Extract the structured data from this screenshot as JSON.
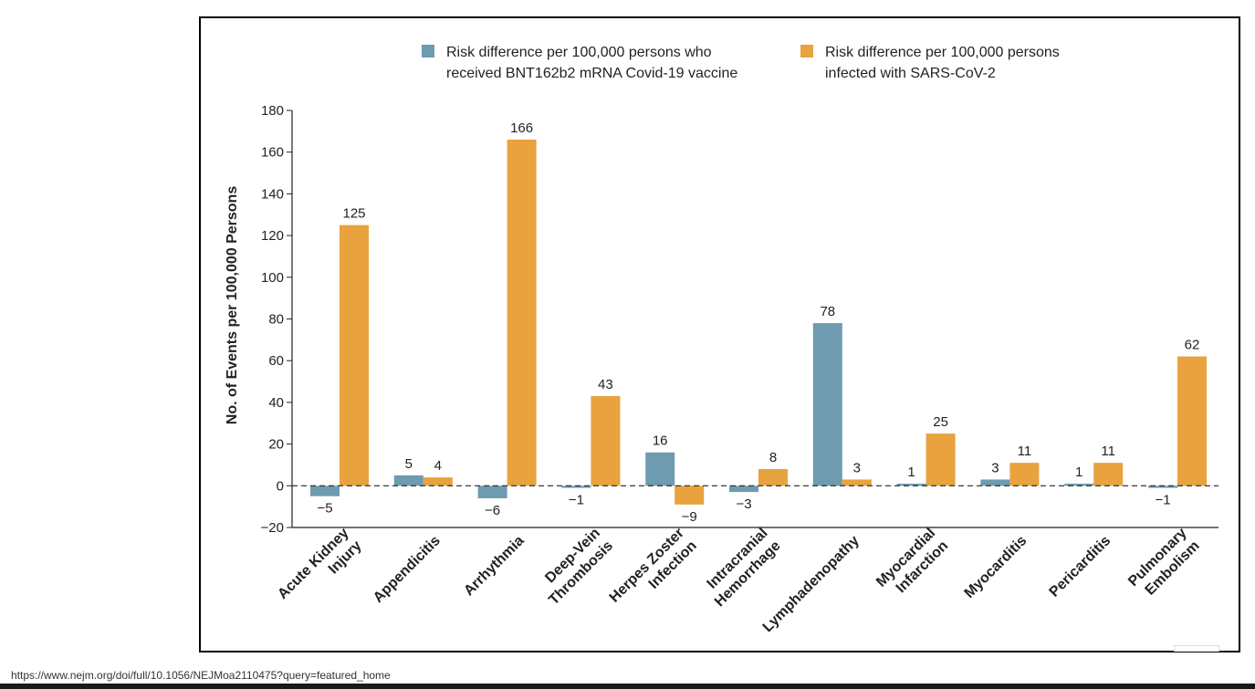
{
  "status_url": "https://www.nejm.org/doi/full/10.1056/NEJMoa2110475?query=featured_home",
  "chart_data": {
    "type": "bar",
    "title": "",
    "ylabel": "No. of Events per 100,000 Persons",
    "xlabel": "",
    "ylim": [
      -20,
      180
    ],
    "yticks": [
      -20,
      0,
      20,
      40,
      60,
      80,
      100,
      120,
      140,
      160,
      180
    ],
    "grid": false,
    "zero_line": "dashed",
    "legend_placement": "top",
    "categories": [
      [
        "Acute Kidney",
        "Injury"
      ],
      [
        "Appendicitis"
      ],
      [
        "Arrhythmia"
      ],
      [
        "Deep-Vein",
        "Thrombosis"
      ],
      [
        "Herpes Zoster",
        "Infection"
      ],
      [
        "Intracranial",
        "Hemorrhage"
      ],
      [
        "Lymphadenopathy"
      ],
      [
        "Myocardial",
        "Infarction"
      ],
      [
        "Myocarditis"
      ],
      [
        "Pericarditis"
      ],
      [
        "Pulmonary",
        "Embolism"
      ]
    ],
    "series": [
      {
        "name": [
          "Risk difference per 100,000 persons who",
          "received BNT162b2 mRNA Covid-19 vaccine"
        ],
        "color": "#6e9bb0",
        "values": [
          -5,
          5,
          -6,
          -1,
          16,
          -3,
          78,
          1,
          3,
          1,
          -1
        ]
      },
      {
        "name": [
          "Risk difference per 100,000 persons",
          "infected with SARS-CoV-2"
        ],
        "color": "#e8a23e",
        "values": [
          125,
          4,
          166,
          43,
          -9,
          8,
          3,
          25,
          11,
          11,
          62
        ]
      }
    ]
  }
}
